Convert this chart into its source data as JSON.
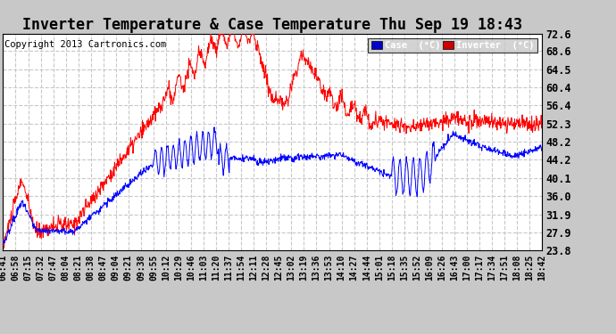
{
  "title": "Inverter Temperature & Case Temperature Thu Sep 19 18:43",
  "copyright": "Copyright 2013 Cartronics.com",
  "legend_case_label": "Case  (°C)",
  "legend_inv_label": "Inverter  (°C)",
  "legend_case_bg": "#0000cc",
  "legend_inv_bg": "#cc0000",
  "yticks": [
    23.8,
    27.9,
    31.9,
    36.0,
    40.1,
    44.2,
    48.2,
    52.3,
    56.4,
    60.4,
    64.5,
    68.6,
    72.6
  ],
  "ylim": [
    23.8,
    72.6
  ],
  "fig_bg_color": "#c8c8c8",
  "plot_bg_color": "#ffffff",
  "grid_color": "#c8c8c8",
  "line_color_case": "#0000ff",
  "line_color_inv": "#ff0000",
  "title_fontsize": 12,
  "copyright_fontsize": 7.5,
  "xtick_fontsize": 7,
  "ytick_fontsize": 8.5,
  "xtick_labels": [
    "06:41",
    "06:58",
    "07:15",
    "07:32",
    "07:47",
    "08:04",
    "08:21",
    "08:38",
    "08:47",
    "09:04",
    "09:21",
    "09:38",
    "09:55",
    "10:12",
    "10:29",
    "10:46",
    "11:03",
    "11:20",
    "11:37",
    "11:54",
    "12:11",
    "12:28",
    "12:45",
    "13:02",
    "13:19",
    "13:36",
    "13:53",
    "14:10",
    "14:27",
    "14:44",
    "15:01",
    "15:18",
    "15:35",
    "15:52",
    "16:09",
    "16:26",
    "16:43",
    "17:00",
    "17:17",
    "17:34",
    "17:51",
    "18:08",
    "18:25",
    "18:42"
  ]
}
